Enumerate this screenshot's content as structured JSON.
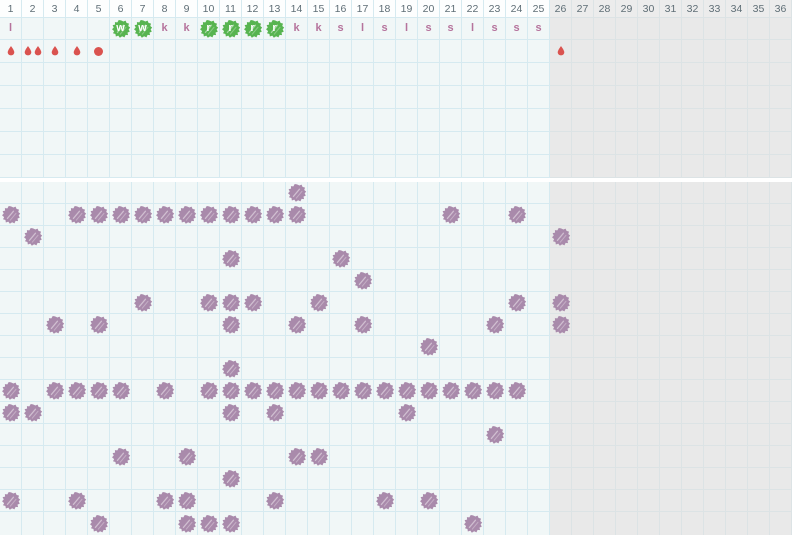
{
  "grid": {
    "columns": 36,
    "light_columns": 25,
    "header_numbers": [
      "1",
      "2",
      "3",
      "4",
      "5",
      "6",
      "7",
      "8",
      "9",
      "10",
      "11",
      "12",
      "13",
      "14",
      "15",
      "16",
      "17",
      "18",
      "19",
      "20",
      "21",
      "22",
      "23",
      "24",
      "25",
      "26",
      "27",
      "28",
      "29",
      "30",
      "31",
      "32",
      "33",
      "34",
      "35",
      "36"
    ]
  },
  "letters": [
    {
      "day": 1,
      "value": "l",
      "highlight": false
    },
    {
      "day": 6,
      "value": "w",
      "highlight": true
    },
    {
      "day": 7,
      "value": "w",
      "highlight": true
    },
    {
      "day": 8,
      "value": "k",
      "highlight": false
    },
    {
      "day": 9,
      "value": "k",
      "highlight": false
    },
    {
      "day": 10,
      "value": "r",
      "highlight": true
    },
    {
      "day": 11,
      "value": "r",
      "highlight": true
    },
    {
      "day": 12,
      "value": "r",
      "highlight": true
    },
    {
      "day": 13,
      "value": "r",
      "highlight": true
    },
    {
      "day": 14,
      "value": "k",
      "highlight": false
    },
    {
      "day": 15,
      "value": "k",
      "highlight": false
    },
    {
      "day": 16,
      "value": "s",
      "highlight": false
    },
    {
      "day": 17,
      "value": "l",
      "highlight": false
    },
    {
      "day": 18,
      "value": "s",
      "highlight": false
    },
    {
      "day": 19,
      "value": "l",
      "highlight": false
    },
    {
      "day": 20,
      "value": "s",
      "highlight": false
    },
    {
      "day": 21,
      "value": "s",
      "highlight": false
    },
    {
      "day": 22,
      "value": "l",
      "highlight": false
    },
    {
      "day": 23,
      "value": "s",
      "highlight": false
    },
    {
      "day": 24,
      "value": "s",
      "highlight": false
    },
    {
      "day": 25,
      "value": "s",
      "highlight": false
    }
  ],
  "drops": [
    {
      "day": 1,
      "count": 1,
      "style": "drop"
    },
    {
      "day": 2,
      "count": 2,
      "style": "drop"
    },
    {
      "day": 3,
      "count": 1,
      "style": "drop"
    },
    {
      "day": 4,
      "count": 1,
      "style": "drop"
    },
    {
      "day": 5,
      "count": 1,
      "style": "dot"
    },
    {
      "day": 26,
      "count": 1,
      "style": "drop"
    }
  ],
  "marker_rows": [
    [
      14
    ],
    [
      1,
      4,
      5,
      6,
      7,
      8,
      9,
      10,
      11,
      12,
      13,
      14,
      21,
      24
    ],
    [
      2,
      26
    ],
    [
      11,
      16
    ],
    [
      17
    ],
    [
      7,
      10,
      11,
      12,
      15,
      24,
      26
    ],
    [
      3,
      5,
      11,
      14,
      17,
      23,
      26
    ],
    [
      20
    ],
    [
      11
    ],
    [
      1,
      3,
      4,
      5,
      6,
      8,
      10,
      11,
      12,
      13,
      14,
      15,
      16,
      17,
      18,
      19,
      20,
      21,
      22,
      23,
      24
    ],
    [
      1,
      2,
      11,
      13,
      19
    ],
    [
      23
    ],
    [
      6,
      9,
      14,
      15
    ],
    [
      11
    ],
    [
      1,
      4,
      8,
      9,
      13,
      18,
      20
    ],
    [
      5,
      9,
      10,
      11,
      22
    ]
  ],
  "icons": {
    "highlight": "green-scribble-highlight-icon",
    "drop": "blood-drop-icon",
    "dot": "spotting-dot-icon",
    "marker": "purple-scribble-marker-icon"
  },
  "colors": {
    "light_bg": "#f1f7f7",
    "gray_bg": "#e9e9e9",
    "grid_line": "#d6eaf0",
    "grid_line_gray": "#dce3e5",
    "header_light_bg": "#fdfefe",
    "header_gray_bg": "#ececec",
    "header_text": "#5f6e76",
    "letter_pink": "#b5739c",
    "highlight_green": "#57b450",
    "drop_red": "#da534f",
    "marker_purple": "#a98aab",
    "gap_white": "#ffffff"
  }
}
